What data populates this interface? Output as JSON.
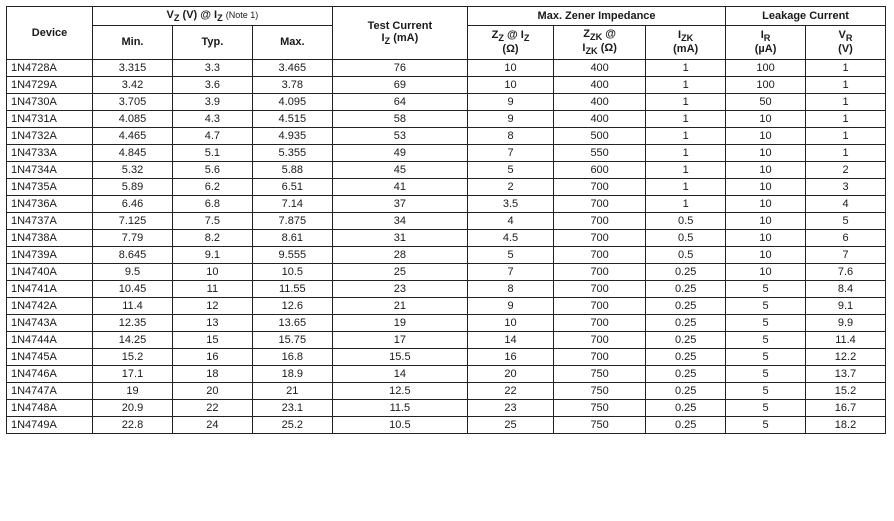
{
  "columns": {
    "device": "Device",
    "vz_group": "V<sub>Z</sub> (V) @ I<sub>Z</sub>",
    "vz_note": "(Note 1)",
    "min": "Min.",
    "typ": "Typ.",
    "max": "Max.",
    "test_current": "Test Current",
    "iz": "I<sub>Z</sub> (mA)",
    "zener_group": "Max. Zener Impedance",
    "zz": "Z<sub>Z</sub> @ I<sub>Z</sub>",
    "zz_unit": "(Ω)",
    "zzk": "Z<sub>ZK</sub> @",
    "zzk_unit": "I<sub>ZK</sub> (Ω)",
    "izk": "I<sub>ZK</sub>",
    "izk_unit": "(mA)",
    "leakage_group": "Leakage Current",
    "ir": "I<sub>R</sub>",
    "ir_unit": "(µA)",
    "vr": "V<sub>R</sub>",
    "vr_unit": "(V)"
  },
  "style": {
    "font_size": 11,
    "header_bg": "#ffffff",
    "border_color": "#222222",
    "text_color": "#1a1a1a"
  },
  "groups": [
    [
      [
        "1N4728A",
        "3.315",
        "3.3",
        "3.465",
        "76",
        "10",
        "400",
        "1",
        "100",
        "1"
      ],
      [
        "1N4729A",
        "3.42",
        "3.6",
        "3.78",
        "69",
        "10",
        "400",
        "1",
        "100",
        "1"
      ],
      [
        "1N4730A",
        "3.705",
        "3.9",
        "4.095",
        "64",
        "9",
        "400",
        "1",
        "50",
        "1"
      ],
      [
        "1N4731A",
        "4.085",
        "4.3",
        "4.515",
        "58",
        "9",
        "400",
        "1",
        "10",
        "1"
      ],
      [
        "1N4732A",
        "4.465",
        "4.7",
        "4.935",
        "53",
        "8",
        "500",
        "1",
        "10",
        "1"
      ]
    ],
    [
      [
        "1N4733A",
        "4.845",
        "5.1",
        "5.355",
        "49",
        "7",
        "550",
        "1",
        "10",
        "1"
      ],
      [
        "1N4734A",
        "5.32",
        "5.6",
        "5.88",
        "45",
        "5",
        "600",
        "1",
        "10",
        "2"
      ],
      [
        "1N4735A",
        "5.89",
        "6.2",
        "6.51",
        "41",
        "2",
        "700",
        "1",
        "10",
        "3"
      ],
      [
        "1N4736A",
        "6.46",
        "6.8",
        "7.14",
        "37",
        "3.5",
        "700",
        "1",
        "10",
        "4"
      ],
      [
        "1N4737A",
        "7.125",
        "7.5",
        "7.875",
        "34",
        "4",
        "700",
        "0.5",
        "10",
        "5"
      ]
    ],
    [
      [
        "1N4738A",
        "7.79",
        "8.2",
        "8.61",
        "31",
        "4.5",
        "700",
        "0.5",
        "10",
        "6"
      ],
      [
        "1N4739A",
        "8.645",
        "9.1",
        "9.555",
        "28",
        "5",
        "700",
        "0.5",
        "10",
        "7"
      ],
      [
        "1N4740A",
        "9.5",
        "10",
        "10.5",
        "25",
        "7",
        "700",
        "0.25",
        "10",
        "7.6"
      ],
      [
        "1N4741A",
        "10.45",
        "11",
        "11.55",
        "23",
        "8",
        "700",
        "0.25",
        "5",
        "8.4"
      ],
      [
        "1N4742A",
        "11.4",
        "12",
        "12.6",
        "21",
        "9",
        "700",
        "0.25",
        "5",
        "9.1"
      ]
    ],
    [
      [
        "1N4743A",
        "12.35",
        "13",
        "13.65",
        "19",
        "10",
        "700",
        "0.25",
        "5",
        "9.9"
      ],
      [
        "1N4744A",
        "14.25",
        "15",
        "15.75",
        "17",
        "14",
        "700",
        "0.25",
        "5",
        "11.4"
      ],
      [
        "1N4745A",
        "15.2",
        "16",
        "16.8",
        "15.5",
        "16",
        "700",
        "0.25",
        "5",
        "12.2"
      ],
      [
        "1N4746A",
        "17.1",
        "18",
        "18.9",
        "14",
        "20",
        "750",
        "0.25",
        "5",
        "13.7"
      ],
      [
        "1N4747A",
        "19",
        "20",
        "21",
        "12.5",
        "22",
        "750",
        "0.25",
        "5",
        "15.2"
      ]
    ],
    [
      [
        "1N4748A",
        "20.9",
        "22",
        "23.1",
        "11.5",
        "23",
        "750",
        "0.25",
        "5",
        "16.7"
      ],
      [
        "1N4749A",
        "22.8",
        "24",
        "25.2",
        "10.5",
        "25",
        "750",
        "0.25",
        "5",
        "18.2"
      ]
    ]
  ]
}
